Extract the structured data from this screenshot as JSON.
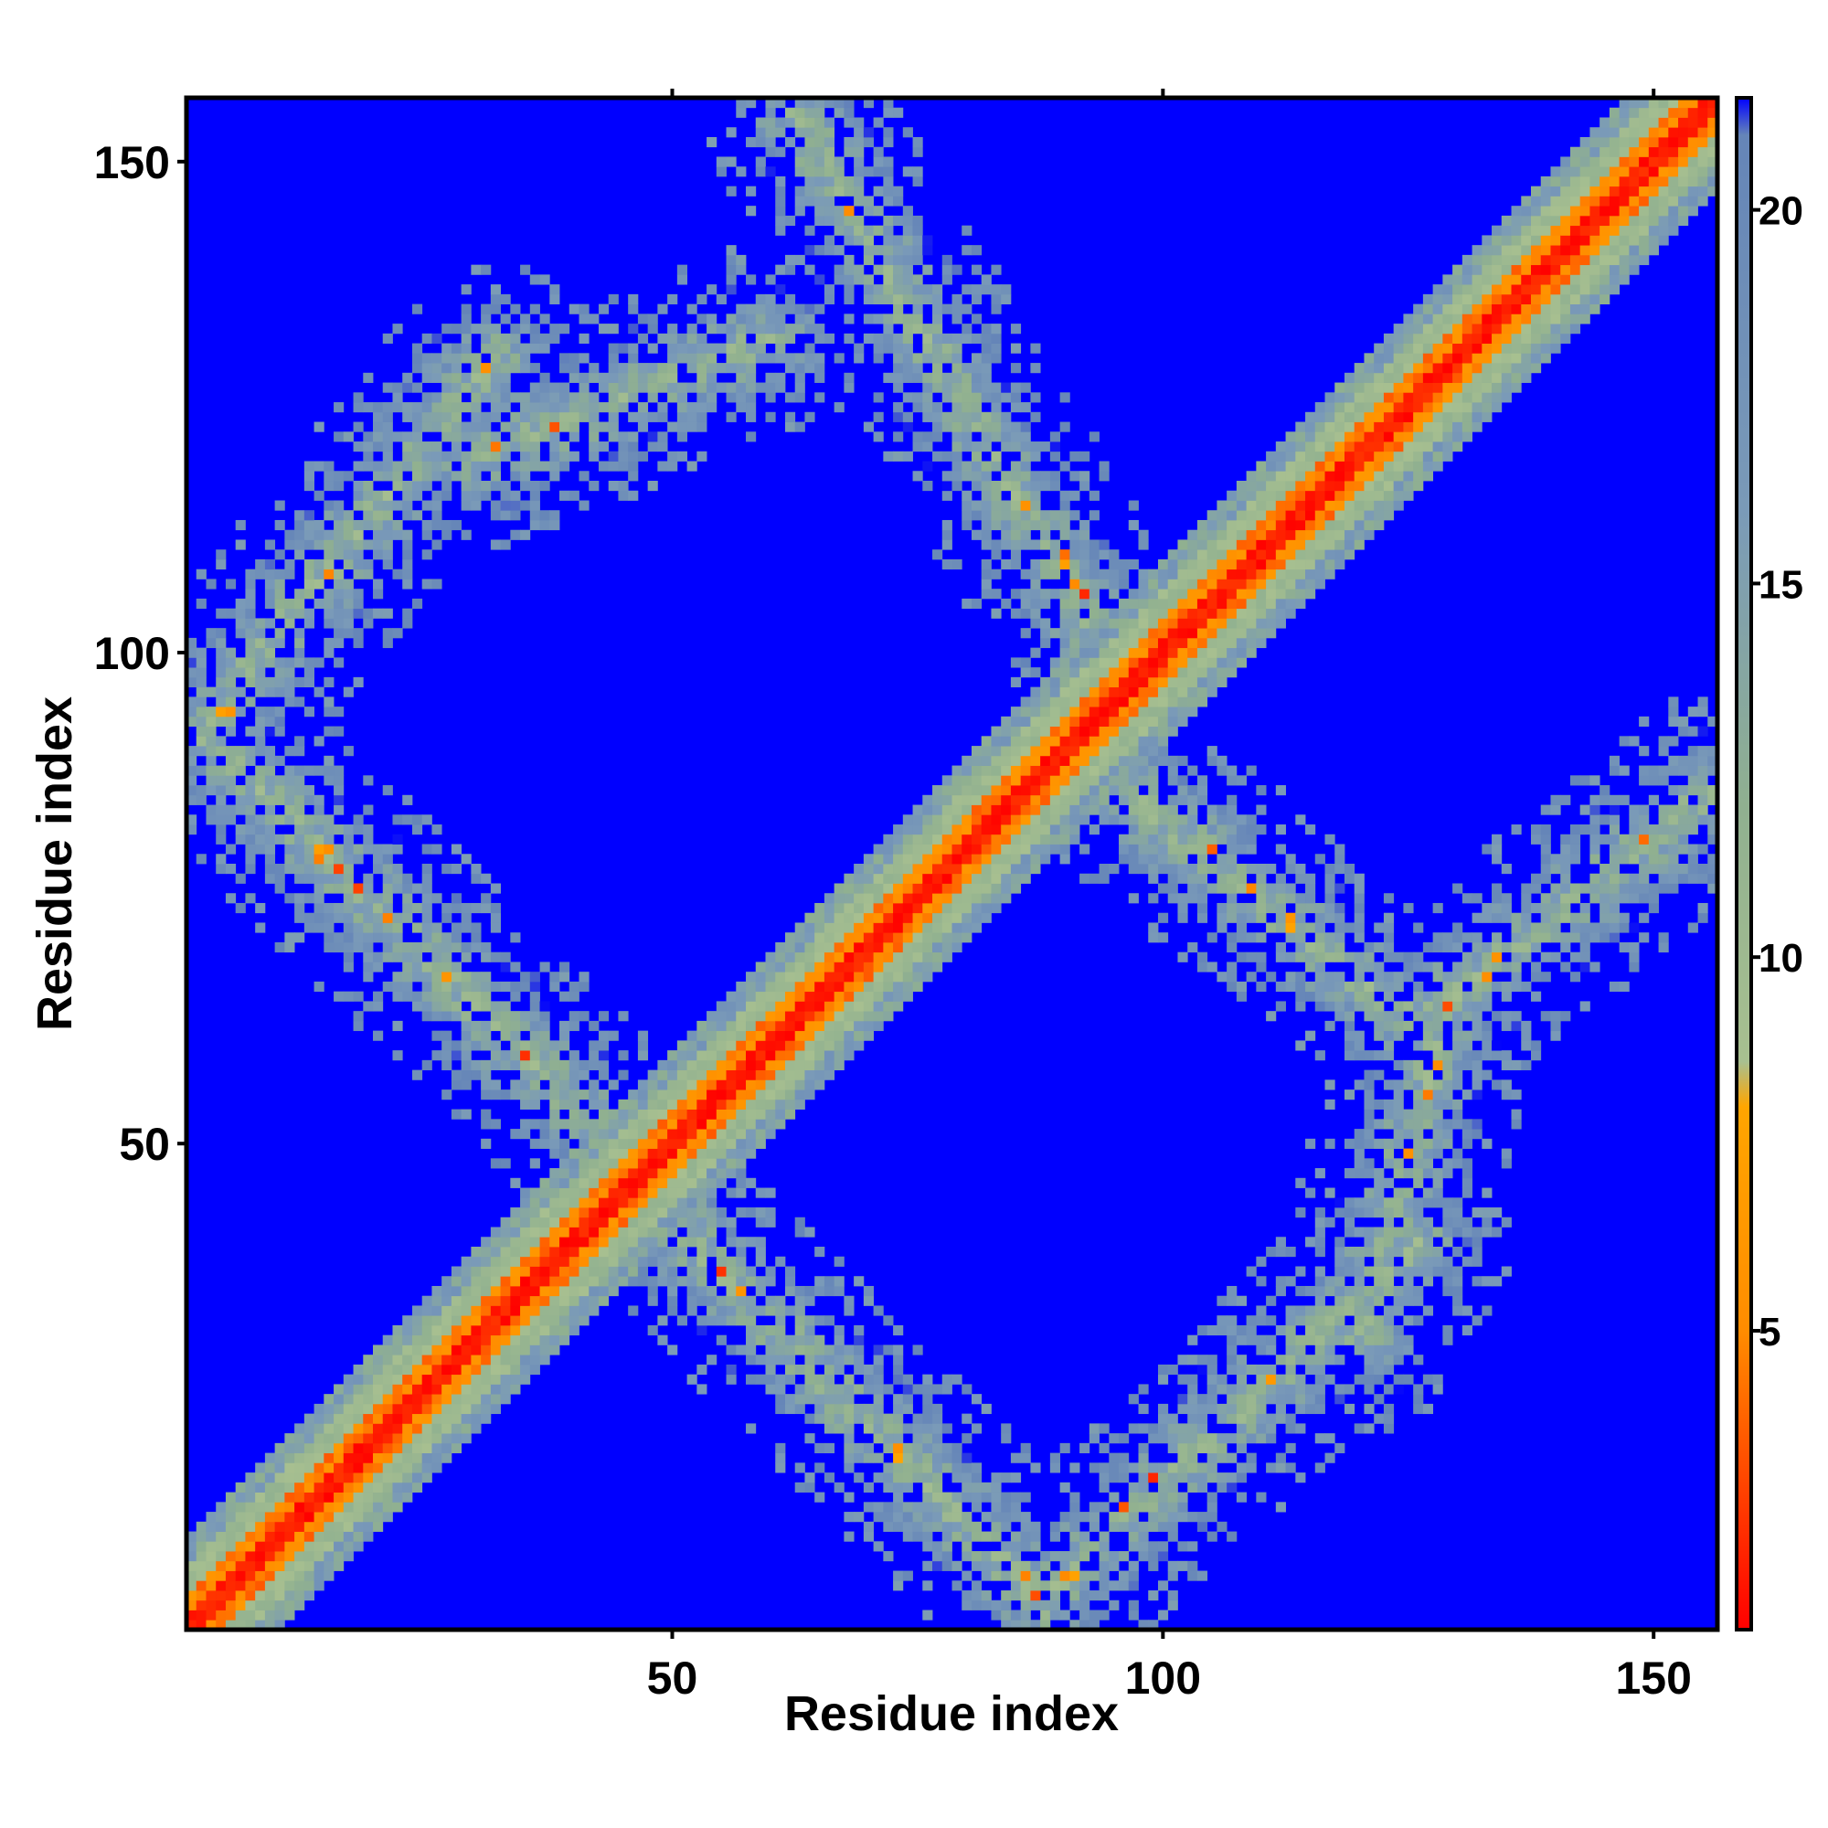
{
  "chart_data": {
    "type": "heatmap",
    "title": "",
    "xlabel": "Residue index",
    "ylabel": "Residue index",
    "xlim": [
      1,
      156
    ],
    "ylim": [
      1,
      156
    ],
    "n_residues": 156,
    "x_ticks": [
      50,
      100,
      150
    ],
    "y_ticks": [
      50,
      100,
      150
    ],
    "colorbar": {
      "range": [
        1,
        21.5
      ],
      "ticks": [
        5,
        10,
        15,
        20
      ],
      "stops": [
        {
          "value": 1,
          "color": "#ff0000"
        },
        {
          "value": 5,
          "color": "#ff8c00"
        },
        {
          "value": 8,
          "color": "#ffa500"
        },
        {
          "value": 8.6,
          "color": "#a8c090"
        },
        {
          "value": 12,
          "color": "#90b090"
        },
        {
          "value": 16,
          "color": "#7a9ab8"
        },
        {
          "value": 21,
          "color": "#6585b8"
        },
        {
          "value": 21.5,
          "color": "#0000ff"
        }
      ]
    },
    "contact_bands": [
      {
        "desc": "main diagonal",
        "x": [
          1,
          156
        ],
        "y": [
          1,
          156
        ]
      },
      {
        "desc": "anti-diagonal arm lower",
        "x": [
          44,
          88
        ],
        "y": [
          48,
          3
        ]
      },
      {
        "desc": "anti-diagonal arm upper",
        "x": [
          62,
          96
        ],
        "y": [
          156,
          97
        ]
      },
      {
        "desc": "left arm lower",
        "x": [
          2,
          44
        ],
        "y": [
          92,
          50
        ]
      },
      {
        "desc": "left arm upper",
        "x": [
          2,
          32
        ],
        "y": [
          92,
          130
        ]
      },
      {
        "desc": "top-left bridge",
        "x": [
          30,
          60
        ],
        "y": [
          120,
          132
        ]
      },
      {
        "desc": "right arm lower",
        "x": [
          88,
          126
        ],
        "y": [
          4,
          40
        ]
      },
      {
        "desc": "right arm mid",
        "x": [
          96,
          126
        ],
        "y": [
          86,
          62
        ]
      },
      {
        "desc": "right arm upper",
        "x": [
          126,
          156
        ],
        "y": [
          62,
          86
        ]
      },
      {
        "desc": "right lower vertical",
        "x": [
          120,
          128
        ],
        "y": [
          30,
          60
        ]
      }
    ]
  }
}
